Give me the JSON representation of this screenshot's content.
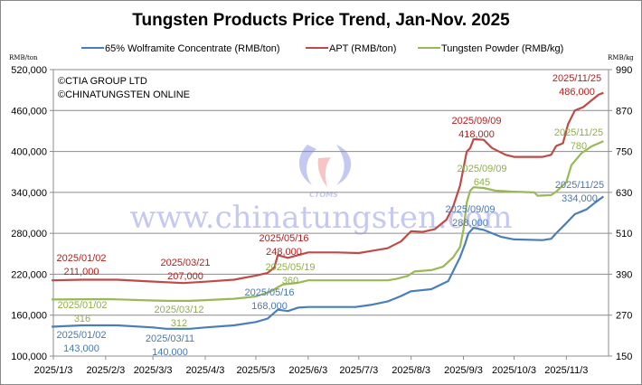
{
  "chart_data": {
    "type": "line",
    "title": "Tungsten Products Price Trend, Jan-Nov. 2025",
    "ylabel_left": "RMB/ton",
    "ylabel_right": "RMB/kg",
    "ylim_left": [
      100000,
      520000
    ],
    "ylim_right": [
      150,
      990
    ],
    "yticks_left": [
      "100,000",
      "160,000",
      "220,000",
      "280,000",
      "340,000",
      "400,000",
      "460,000",
      "520,000"
    ],
    "yticks_right": [
      "150",
      "270",
      "390",
      "510",
      "630",
      "750",
      "870",
      "990"
    ],
    "xlim": [
      "2025-01-03",
      "2025-11-28"
    ],
    "xticks": [
      "2025/1/3",
      "2025/2/3",
      "2025/3/3",
      "2025/4/3",
      "2025/5/3",
      "2025/6/3",
      "2025/7/3",
      "2025/8/3",
      "2025/9/3",
      "2025/10/3",
      "2025/11/3"
    ],
    "xtick_dates": [
      "2025-01-03",
      "2025-02-03",
      "2025-03-03",
      "2025-04-03",
      "2025-05-03",
      "2025-06-03",
      "2025-07-03",
      "2025-08-03",
      "2025-09-03",
      "2025-10-03",
      "2025-11-03"
    ],
    "grid": true,
    "legend_position": "top",
    "copyright": [
      "©CTIA GROUP LTD",
      "©CHINATUNGSTEN ONLINE"
    ],
    "watermark": {
      "url": "www.chinatungsten.com",
      "logo": "CTOMS"
    },
    "series": [
      {
        "name": "65% Wolframite Concentrate (RMB/ton)",
        "axis": "left",
        "color": "#4a7ebb",
        "points": [
          [
            "2025-01-02",
            143000
          ],
          [
            "2025-01-20",
            145000
          ],
          [
            "2025-02-10",
            145000
          ],
          [
            "2025-03-03",
            142000
          ],
          [
            "2025-03-11",
            140000
          ],
          [
            "2025-03-25",
            140000
          ],
          [
            "2025-04-03",
            142000
          ],
          [
            "2025-04-20",
            145000
          ],
          [
            "2025-05-03",
            150000
          ],
          [
            "2025-05-10",
            155000
          ],
          [
            "2025-05-16",
            168000
          ],
          [
            "2025-05-22",
            166000
          ],
          [
            "2025-05-28",
            171000
          ],
          [
            "2025-06-03",
            172000
          ],
          [
            "2025-07-01",
            172000
          ],
          [
            "2025-07-10",
            175000
          ],
          [
            "2025-07-20",
            180000
          ],
          [
            "2025-07-28",
            188000
          ],
          [
            "2025-08-03",
            195000
          ],
          [
            "2025-08-15",
            198000
          ],
          [
            "2025-08-25",
            210000
          ],
          [
            "2025-08-28",
            225000
          ],
          [
            "2025-09-01",
            245000
          ],
          [
            "2025-09-04",
            265000
          ],
          [
            "2025-09-06",
            280000
          ],
          [
            "2025-09-09",
            288000
          ],
          [
            "2025-09-15",
            285000
          ],
          [
            "2025-09-25",
            275000
          ],
          [
            "2025-10-03",
            271000
          ],
          [
            "2025-10-20",
            270000
          ],
          [
            "2025-10-25",
            272000
          ],
          [
            "2025-10-28",
            280000
          ],
          [
            "2025-11-03",
            295000
          ],
          [
            "2025-11-08",
            308000
          ],
          [
            "2025-11-15",
            315000
          ],
          [
            "2025-11-20",
            325000
          ],
          [
            "2025-11-25",
            334000
          ]
        ]
      },
      {
        "name": "APT (RMB/ton)",
        "axis": "left",
        "color": "#be4b48",
        "points": [
          [
            "2025-01-02",
            211000
          ],
          [
            "2025-01-20",
            212000
          ],
          [
            "2025-02-10",
            212000
          ],
          [
            "2025-02-25",
            210000
          ],
          [
            "2025-03-21",
            207000
          ],
          [
            "2025-04-03",
            209000
          ],
          [
            "2025-04-20",
            212000
          ],
          [
            "2025-05-03",
            218000
          ],
          [
            "2025-05-10",
            222000
          ],
          [
            "2025-05-14",
            230000
          ],
          [
            "2025-05-16",
            248000
          ],
          [
            "2025-05-22",
            244000
          ],
          [
            "2025-05-28",
            248000
          ],
          [
            "2025-06-03",
            252000
          ],
          [
            "2025-06-20",
            252000
          ],
          [
            "2025-07-03",
            251000
          ],
          [
            "2025-07-10",
            254000
          ],
          [
            "2025-07-20",
            258000
          ],
          [
            "2025-07-28",
            268000
          ],
          [
            "2025-08-03",
            283000
          ],
          [
            "2025-08-10",
            282000
          ],
          [
            "2025-08-17",
            286000
          ],
          [
            "2025-08-24",
            300000
          ],
          [
            "2025-08-28",
            320000
          ],
          [
            "2025-09-01",
            350000
          ],
          [
            "2025-09-03",
            375000
          ],
          [
            "2025-09-05",
            400000
          ],
          [
            "2025-09-07",
            405000
          ],
          [
            "2025-09-09",
            418000
          ],
          [
            "2025-09-15",
            417000
          ],
          [
            "2025-09-20",
            405000
          ],
          [
            "2025-09-28",
            395000
          ],
          [
            "2025-10-03",
            392000
          ],
          [
            "2025-10-20",
            392000
          ],
          [
            "2025-10-25",
            395000
          ],
          [
            "2025-10-28",
            408000
          ],
          [
            "2025-11-01",
            412000
          ],
          [
            "2025-11-04",
            440000
          ],
          [
            "2025-11-08",
            460000
          ],
          [
            "2025-11-13",
            465000
          ],
          [
            "2025-11-18",
            475000
          ],
          [
            "2025-11-22",
            483000
          ],
          [
            "2025-11-25",
            486000
          ]
        ]
      },
      {
        "name": "Tungsten Powder (RMB/kg)",
        "axis": "right",
        "color": "#98b954",
        "points": [
          [
            "2025-01-02",
            316
          ],
          [
            "2025-02-05",
            317
          ],
          [
            "2025-03-03",
            313
          ],
          [
            "2025-03-12",
            312
          ],
          [
            "2025-03-25",
            312
          ],
          [
            "2025-04-03",
            314
          ],
          [
            "2025-04-20",
            318
          ],
          [
            "2025-05-03",
            325
          ],
          [
            "2025-05-12",
            340
          ],
          [
            "2025-05-16",
            352
          ],
          [
            "2025-05-19",
            360
          ],
          [
            "2025-05-28",
            365
          ],
          [
            "2025-06-03",
            372
          ],
          [
            "2025-07-20",
            372
          ],
          [
            "2025-07-25",
            376
          ],
          [
            "2025-08-01",
            385
          ],
          [
            "2025-08-05",
            398
          ],
          [
            "2025-08-15",
            402
          ],
          [
            "2025-08-22",
            412
          ],
          [
            "2025-08-28",
            440
          ],
          [
            "2025-09-01",
            470
          ],
          [
            "2025-09-03",
            520
          ],
          [
            "2025-09-05",
            600
          ],
          [
            "2025-09-07",
            635
          ],
          [
            "2025-09-09",
            645
          ],
          [
            "2025-09-15",
            643
          ],
          [
            "2025-09-22",
            635
          ],
          [
            "2025-10-03",
            632
          ],
          [
            "2025-10-15",
            630
          ],
          [
            "2025-10-17",
            620
          ],
          [
            "2025-10-25",
            622
          ],
          [
            "2025-10-28",
            632
          ],
          [
            "2025-11-03",
            660
          ],
          [
            "2025-11-06",
            710
          ],
          [
            "2025-11-12",
            745
          ],
          [
            "2025-11-18",
            765
          ],
          [
            "2025-11-25",
            780
          ]
        ]
      }
    ],
    "annotations": {
      "apt": [
        [
          "2025/01/02",
          "211,000"
        ],
        [
          "2025/03/21",
          "207,000"
        ],
        [
          "2025/05/16",
          "248,000"
        ],
        [
          "2025/09/09",
          "418,000"
        ],
        [
          "2025/11/25",
          "486,000"
        ]
      ],
      "powder": [
        [
          "2025/01/02",
          "316"
        ],
        [
          "2025/03/12",
          "312"
        ],
        [
          "2025/05/19",
          "360"
        ],
        [
          "2025/09/09",
          "645"
        ],
        [
          "2025/11/25",
          "780"
        ]
      ],
      "wolframite": [
        [
          "2025/01/02",
          "143,000"
        ],
        [
          "2025/03/11",
          "140,000"
        ],
        [
          "2025/05/16",
          "168,000"
        ],
        [
          "2025/09/09",
          "288,000"
        ],
        [
          "2025/11/25",
          "334,000"
        ]
      ]
    },
    "annotation_colors": {
      "apt": "#b41f1f",
      "powder": "#8fae4a",
      "wolframite": "#4a78b0"
    }
  }
}
